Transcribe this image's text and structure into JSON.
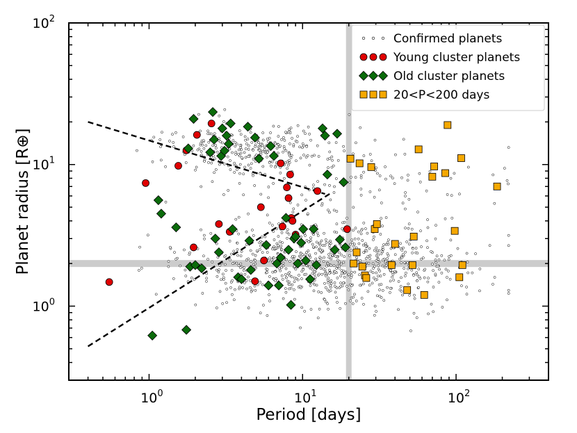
{
  "chart_data": {
    "type": "scatter",
    "title": "",
    "xlabel": "Period [days]",
    "ylabel": "Planet radius [R⊕]",
    "xscale": "log",
    "yscale": "log",
    "xlim": [
      0.3,
      400
    ],
    "ylim": [
      0.3,
      100
    ],
    "x_tick_labels": [
      "10^0",
      "10^1",
      "10^2"
    ],
    "y_tick_labels": [
      "10^0",
      "10^1",
      "10^2"
    ],
    "grid": false,
    "legend_position": "top-right",
    "colors": {
      "confirmed": "#ffffff",
      "young": "#e00000",
      "old": "#0a6b0a",
      "mid_period": "#f5a800",
      "shade": "#cccccc",
      "dashed_line": "#000000"
    },
    "shaded_bands": [
      {
        "orientation": "horizontal",
        "y": 2.0
      },
      {
        "orientation": "vertical",
        "x": 20
      }
    ],
    "dashed_lines": [
      {
        "x": [
          0.4,
          14
        ],
        "y": [
          20,
          6.2
        ]
      },
      {
        "x": [
          0.4,
          15
        ],
        "y": [
          0.52,
          6.2
        ]
      }
    ],
    "series": [
      {
        "name": "Confirmed planets",
        "marker": "small-circle",
        "note_count": "background population"
      },
      {
        "name": "Young cluster planets",
        "marker": "circle",
        "x": [
          0.55,
          0.95,
          1.55,
          1.75,
          1.95,
          2.05,
          2.55,
          2.85,
          3.35,
          4.9,
          5.35,
          5.6,
          7.2,
          7.4,
          7.9,
          8.1,
          8.3,
          8.45,
          8.6,
          9.0,
          12.5,
          19.5
        ],
        "y": [
          1.48,
          7.4,
          9.8,
          12.6,
          2.6,
          16.2,
          19.5,
          3.8,
          3.35,
          1.5,
          5.0,
          2.1,
          10.2,
          3.65,
          6.9,
          5.8,
          8.5,
          4.2,
          4.0,
          3.2,
          6.5,
          3.5
        ]
      },
      {
        "name": "Old cluster planets",
        "marker": "diamond",
        "x": [
          1.05,
          1.15,
          1.2,
          1.5,
          1.75,
          1.8,
          1.85,
          1.95,
          2.0,
          2.2,
          2.5,
          2.6,
          2.65,
          2.7,
          2.85,
          2.95,
          3.0,
          3.1,
          3.2,
          3.3,
          3.4,
          3.5,
          3.8,
          4.0,
          4.4,
          4.5,
          4.6,
          4.9,
          5.2,
          5.8,
          6.0,
          6.2,
          6.5,
          6.8,
          7.0,
          7.2,
          7.8,
          8.1,
          8.4,
          8.8,
          9.0,
          9.3,
          9.8,
          10.1,
          10.5,
          11.2,
          11.8,
          12.3,
          13.5,
          14.0,
          14.5,
          16.2,
          16.8,
          17.5,
          18.5,
          19.0
        ],
        "y": [
          0.62,
          5.6,
          4.5,
          3.6,
          0.68,
          13.0,
          1.9,
          21.0,
          1.95,
          1.85,
          12.2,
          23.5,
          15.0,
          3.0,
          2.4,
          11.5,
          18.0,
          12.5,
          16.0,
          14.0,
          19.5,
          3.5,
          1.6,
          1.55,
          18.5,
          2.9,
          1.8,
          15.5,
          11.0,
          2.7,
          1.4,
          13.5,
          11.5,
          2.0,
          1.4,
          2.2,
          4.2,
          2.5,
          1.02,
          3.0,
          3.1,
          2.0,
          2.8,
          3.5,
          2.1,
          1.55,
          3.5,
          1.95,
          18.0,
          16.0,
          8.5,
          2.5,
          16.5,
          2.95,
          7.5,
          2.6
        ],
        "note": "approximate readings"
      },
      {
        "name": "20<P<200 days",
        "marker": "square",
        "x": [
          20.5,
          21.5,
          22.5,
          23.5,
          24.5,
          25.5,
          26.0,
          28.0,
          29.5,
          30.5,
          38.0,
          40.0,
          48.0,
          52.0,
          53.0,
          57.0,
          62.0,
          70.0,
          72.0,
          85.0,
          88.0,
          98.0,
          105.0,
          108.0,
          110.0,
          185.0
        ],
        "y": [
          11.0,
          2.0,
          2.4,
          10.2,
          1.9,
          1.65,
          1.58,
          9.6,
          3.5,
          3.8,
          1.95,
          2.75,
          1.3,
          1.95,
          3.1,
          12.8,
          1.2,
          8.2,
          9.7,
          8.7,
          19.0,
          3.4,
          1.6,
          11.1,
          1.95,
          7.0
        ]
      }
    ]
  }
}
